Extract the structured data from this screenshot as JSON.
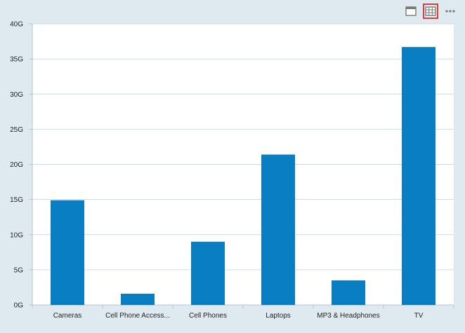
{
  "toolbar": {
    "buttons": [
      {
        "name": "window-icon"
      },
      {
        "name": "table-icon",
        "selected": true
      },
      {
        "name": "more-icon"
      }
    ]
  },
  "colors": {
    "bar": "#0a7ec2",
    "grid": "#c9dbe5",
    "plot_bg": "#ffffff",
    "page_bg": "#dfeaf0",
    "selected_border": "#e23b3b"
  },
  "chart_data": {
    "type": "bar",
    "categories": [
      "Cameras",
      "Cell Phone Access...",
      "Cell Phones",
      "Laptops",
      "MP3 & Headphones",
      "TV"
    ],
    "values": [
      14.9,
      1.6,
      9.0,
      21.4,
      3.5,
      36.7
    ],
    "unit_suffix": "G",
    "ylim": [
      0,
      40
    ],
    "yticks": [
      0,
      5,
      10,
      15,
      20,
      25,
      30,
      35,
      40
    ],
    "ytick_labels": [
      "0G",
      "5G",
      "10G",
      "15G",
      "20G",
      "25G",
      "30G",
      "35G",
      "40G"
    ],
    "title": "",
    "xlabel": "",
    "ylabel": "",
    "grid": true,
    "legend": "none"
  }
}
